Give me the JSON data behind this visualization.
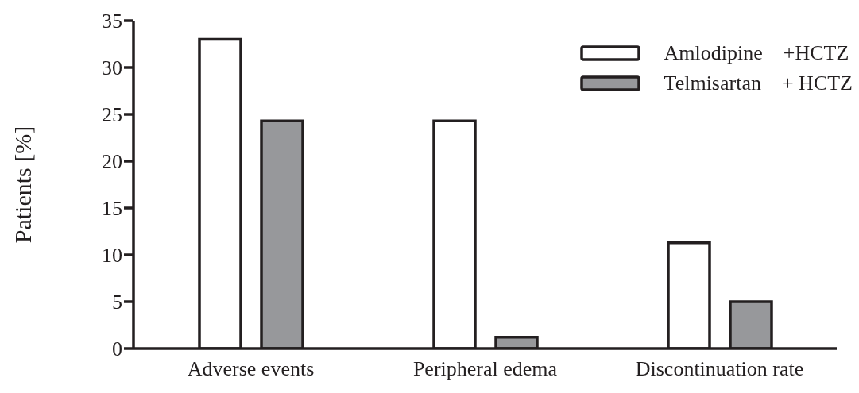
{
  "chart_data": {
    "type": "bar",
    "ylabel": "Patients [%]",
    "categories": [
      "Adverse    events",
      "Peripheral edema",
      "Discontinuation rate"
    ],
    "series": [
      {
        "name": "Amlodipine    +HCTZ",
        "color": "#ffffff",
        "values": [
          33.0,
          24.3,
          11.3
        ]
      },
      {
        "name": "Telmisartan    + HCTZ",
        "color": "#97989b",
        "values": [
          24.3,
          1.2,
          5.0
        ]
      }
    ],
    "ylim": [
      0,
      35
    ],
    "yticks": [
      0,
      5,
      10,
      15,
      20,
      25,
      30,
      35
    ],
    "grid": false,
    "legend": "top right"
  }
}
